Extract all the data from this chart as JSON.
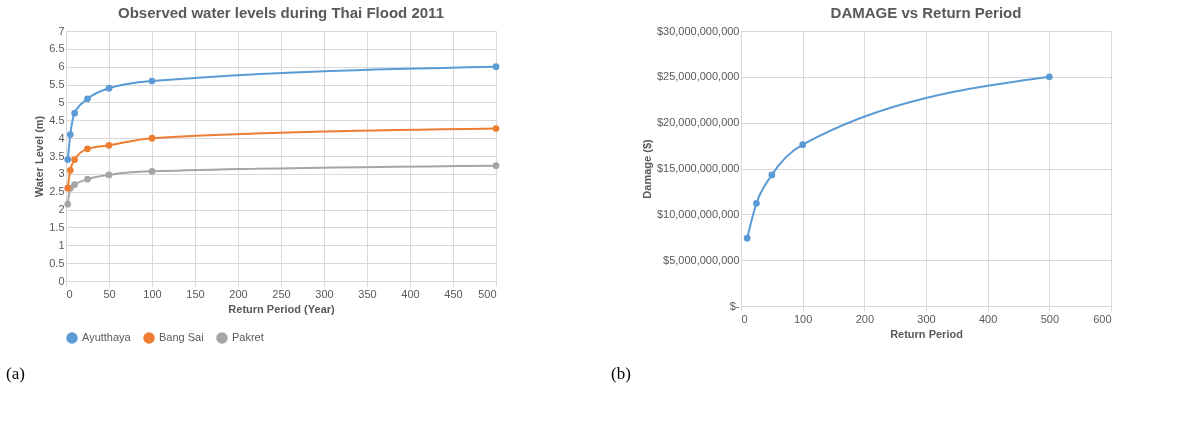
{
  "chart_data": [
    {
      "type": "line",
      "title": "Observed water levels during Thai Flood 2011",
      "xlabel": "Return Period (Year)",
      "ylabel": "Water Level (m)",
      "x": [
        2,
        5,
        10,
        25,
        50,
        100,
        500
      ],
      "series": [
        {
          "name": "Ayutthaya",
          "color": "#5b9bd5",
          "values": [
            3.4,
            4.1,
            4.7,
            5.1,
            5.4,
            5.6,
            6.0
          ]
        },
        {
          "name": "Bang Sai",
          "color": "#ed7d31",
          "values": [
            2.6,
            3.1,
            3.4,
            3.7,
            3.8,
            4.0,
            4.27
          ]
        },
        {
          "name": "Pakret",
          "color": "#a5a5a5",
          "values": [
            2.15,
            2.6,
            2.7,
            2.85,
            2.97,
            3.07,
            3.23
          ]
        }
      ],
      "xlim": [
        0,
        500
      ],
      "xticks": [
        0,
        50,
        100,
        150,
        200,
        250,
        300,
        350,
        400,
        450,
        500
      ],
      "ylim": [
        0,
        7
      ],
      "yticks": [
        0,
        0.5,
        1,
        1.5,
        2,
        2.5,
        3,
        3.5,
        4,
        4.5,
        5,
        5.5,
        6,
        6.5,
        7
      ],
      "grid": true,
      "legend": "bottom",
      "marker": "circle",
      "line_style": "solid",
      "annotations": [
        "(a)"
      ]
    },
    {
      "type": "line",
      "title": "DAMAGE vs Return Period",
      "xlabel": "Return Period",
      "ylabel": "Damage ($)",
      "x": [
        10,
        25,
        50,
        100,
        500
      ],
      "series": [
        {
          "color": "#5b9bd5",
          "values": [
            7400000000,
            11200000000,
            14300000000,
            17600000000,
            25000000000
          ]
        }
      ],
      "xlim": [
        0,
        600
      ],
      "xticks": [
        0,
        100,
        200,
        300,
        400,
        500,
        600
      ],
      "ylim": [
        0,
        30000000000
      ],
      "yticks": [
        {
          "value": 0,
          "label": "$-"
        },
        {
          "value": 5000000000,
          "label": "$5,000,000,000"
        },
        {
          "value": 10000000000,
          "label": "$10,000,000,000"
        },
        {
          "value": 15000000000,
          "label": "$15,000,000,000"
        },
        {
          "value": 20000000000,
          "label": "$20,000,000,000"
        },
        {
          "value": 25000000000,
          "label": "$25,000,000,000"
        },
        {
          "value": 30000000000,
          "label": "$30,000,000,000"
        }
      ],
      "grid": true,
      "legend": false,
      "marker": "circle",
      "line_style": "solid",
      "annotations": [
        "(b)"
      ]
    }
  ]
}
